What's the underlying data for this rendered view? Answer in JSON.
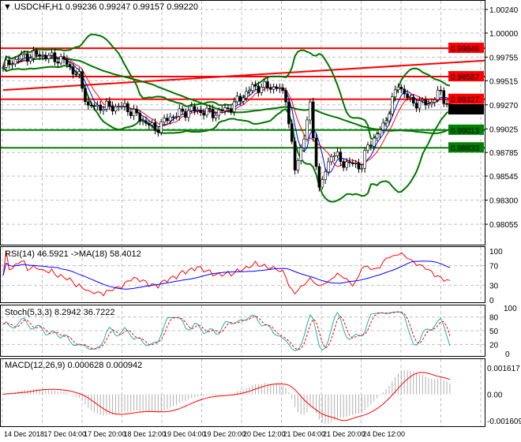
{
  "header": {
    "symbol": "USDCHF,H1",
    "open": "0.99236",
    "high": "0.99247",
    "low": "0.99157",
    "close": "0.99220"
  },
  "colors": {
    "resistance": "#ff0000",
    "support": "#008000",
    "bands": "#007700",
    "current": "#000000",
    "rsi": "#ff0000",
    "rsi_ma": "#0000ff",
    "stoch_main": "#20b2aa",
    "stoch_signal": "#ff0000",
    "macd_signal": "#ff0000",
    "macd_hist": "#b0b0b0"
  },
  "chart_data": [
    {
      "type": "candlestick",
      "title": "USDCHF,H1",
      "ylim": [
        0.97845,
        1.00312
      ],
      "price_ticks": [
        "1.00240",
        "1.00000",
        "0.99755",
        "0.99515",
        "0.99270",
        "0.99025",
        "0.98785",
        "0.98545",
        "0.98300",
        "0.98055"
      ],
      "time_labels": [
        "14 Dec 2018",
        "17 Dec 04:00",
        "17 Dec 20:00",
        "18 Dec 12:00",
        "19 Dec 04:00",
        "19 Dec 20:00",
        "20 Dec 12:00",
        "21 Dec 04:00",
        "21 Dec 20:00",
        "24 Dec 12:00"
      ],
      "close_keypoints": [
        [
          0,
          0.9965
        ],
        [
          5,
          0.9975
        ],
        [
          12,
          0.9978
        ],
        [
          20,
          0.9972
        ],
        [
          25,
          0.9955
        ],
        [
          28,
          0.9925
        ],
        [
          40,
          0.9925
        ],
        [
          50,
          0.9902
        ],
        [
          55,
          0.9915
        ],
        [
          62,
          0.9922
        ],
        [
          70,
          0.9918
        ],
        [
          75,
          0.9925
        ],
        [
          82,
          0.9945
        ],
        [
          90,
          0.9945
        ],
        [
          93,
          0.9935
        ],
        [
          96,
          0.986
        ],
        [
          99,
          0.9895
        ],
        [
          101,
          0.9925
        ],
        [
          104,
          0.984
        ],
        [
          108,
          0.9878
        ],
        [
          112,
          0.9868
        ],
        [
          118,
          0.9865
        ],
        [
          120,
          0.9885
        ],
        [
          125,
          0.9905
        ],
        [
          130,
          0.9948
        ],
        [
          134,
          0.993
        ],
        [
          140,
          0.9928
        ],
        [
          144,
          0.994
        ],
        [
          147,
          0.9922
        ]
      ],
      "levels": [
        {
          "label": "0.99846",
          "value": 0.99846,
          "kind": "resistance"
        },
        {
          "label": "0.99557",
          "value": 0.99557,
          "kind": "resistance"
        },
        {
          "label": "0.99327",
          "value": 0.99327,
          "kind": "resistance"
        },
        {
          "label": "0.99220",
          "value": 0.9922,
          "kind": "current"
        },
        {
          "label": "0.99013",
          "value": 0.99013,
          "kind": "support"
        },
        {
          "label": "0.98833",
          "value": 0.98833,
          "kind": "support"
        }
      ],
      "trendline": [
        [
          0,
          0.9942
        ],
        [
          153,
          0.9972
        ]
      ]
    },
    {
      "type": "line",
      "title": "RSI(14) 46.5921  ->MA(18) 58.4012",
      "ylim": [
        0,
        100
      ],
      "ticks": [
        "100",
        "70",
        "30",
        "0"
      ]
    },
    {
      "type": "line",
      "title": "Stoch(5,3,3) 8.2942 36.7222",
      "ylim": [
        0,
        100
      ],
      "ticks": [
        "100",
        "80",
        "50",
        "20",
        "0"
      ]
    },
    {
      "type": "bar",
      "title": "MACD(12,26,9) 0.000628 0.000942",
      "ylim": [
        -0.001609,
        0.001617
      ],
      "ticks": [
        "0.001617",
        "0.00",
        "-0.001609"
      ]
    }
  ]
}
